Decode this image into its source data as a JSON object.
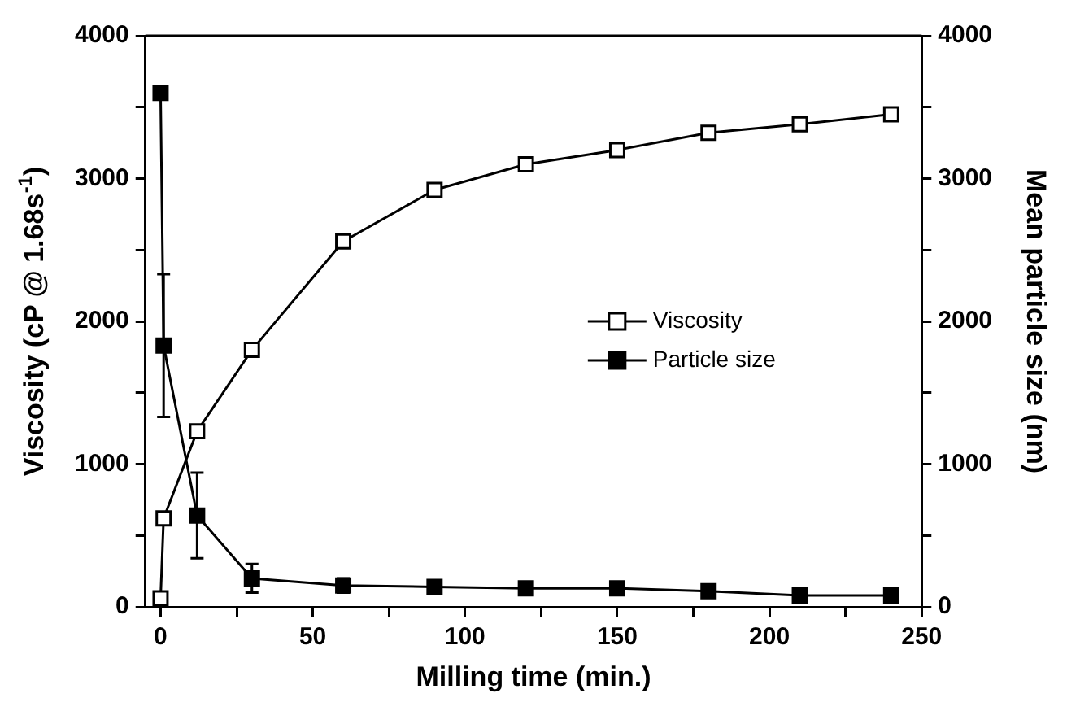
{
  "chart_data": {
    "type": "line",
    "xlabel": "Milling time (min.)",
    "ylabel": "Viscosity (cP @ 1.68s$^{-1}$)",
    "y2label": "Mean particle size (nm)",
    "xlim": [
      -5,
      250
    ],
    "xticks": [
      0,
      {
        "value": 25,
        "label": null
      },
      50,
      {
        "value": 75,
        "label": null
      },
      100,
      {
        "value": 125,
        "label": null
      },
      150,
      {
        "value": 175,
        "label": null
      },
      200,
      {
        "value": 225,
        "label": null
      },
      250
    ],
    "ylim": [
      0,
      4000
    ],
    "yticks": [
      0,
      {
        "value": 500,
        "label": null
      },
      1000,
      {
        "value": 1500,
        "label": null
      },
      2000,
      {
        "value": 2500,
        "label": null
      },
      3000,
      {
        "value": 3500,
        "label": null
      },
      4000
    ],
    "y2lim": [
      0,
      4000
    ],
    "y2ticks": [
      0,
      {
        "value": 500,
        "label": null
      },
      1000,
      {
        "value": 1500,
        "label": null
      },
      2000,
      {
        "value": 2500,
        "label": null
      },
      3000,
      {
        "value": 3500,
        "label": null
      },
      4000
    ],
    "marker": "square",
    "legend": "right",
    "grid": false,
    "series": [
      {
        "name": "Viscosity",
        "color": "#000000",
        "x": [
          0,
          1,
          12,
          30,
          60,
          90,
          120,
          150,
          180,
          210,
          240
        ],
        "values": [
          60,
          620,
          1230,
          1800,
          2560,
          2920,
          3100,
          3200,
          3320,
          3380,
          3450
        ]
      },
      {
        "name": "Particle size",
        "color": "#000000",
        "axis": "y2",
        "x": [
          0,
          1,
          12,
          30,
          60,
          90,
          120,
          150,
          180,
          210,
          240
        ],
        "values": [
          3600,
          1830,
          640,
          200,
          150,
          140,
          130,
          130,
          110,
          80,
          80
        ],
        "errors": [
          null,
          500,
          300,
          100,
          50,
          null,
          null,
          null,
          null,
          null,
          null
        ]
      }
    ]
  }
}
